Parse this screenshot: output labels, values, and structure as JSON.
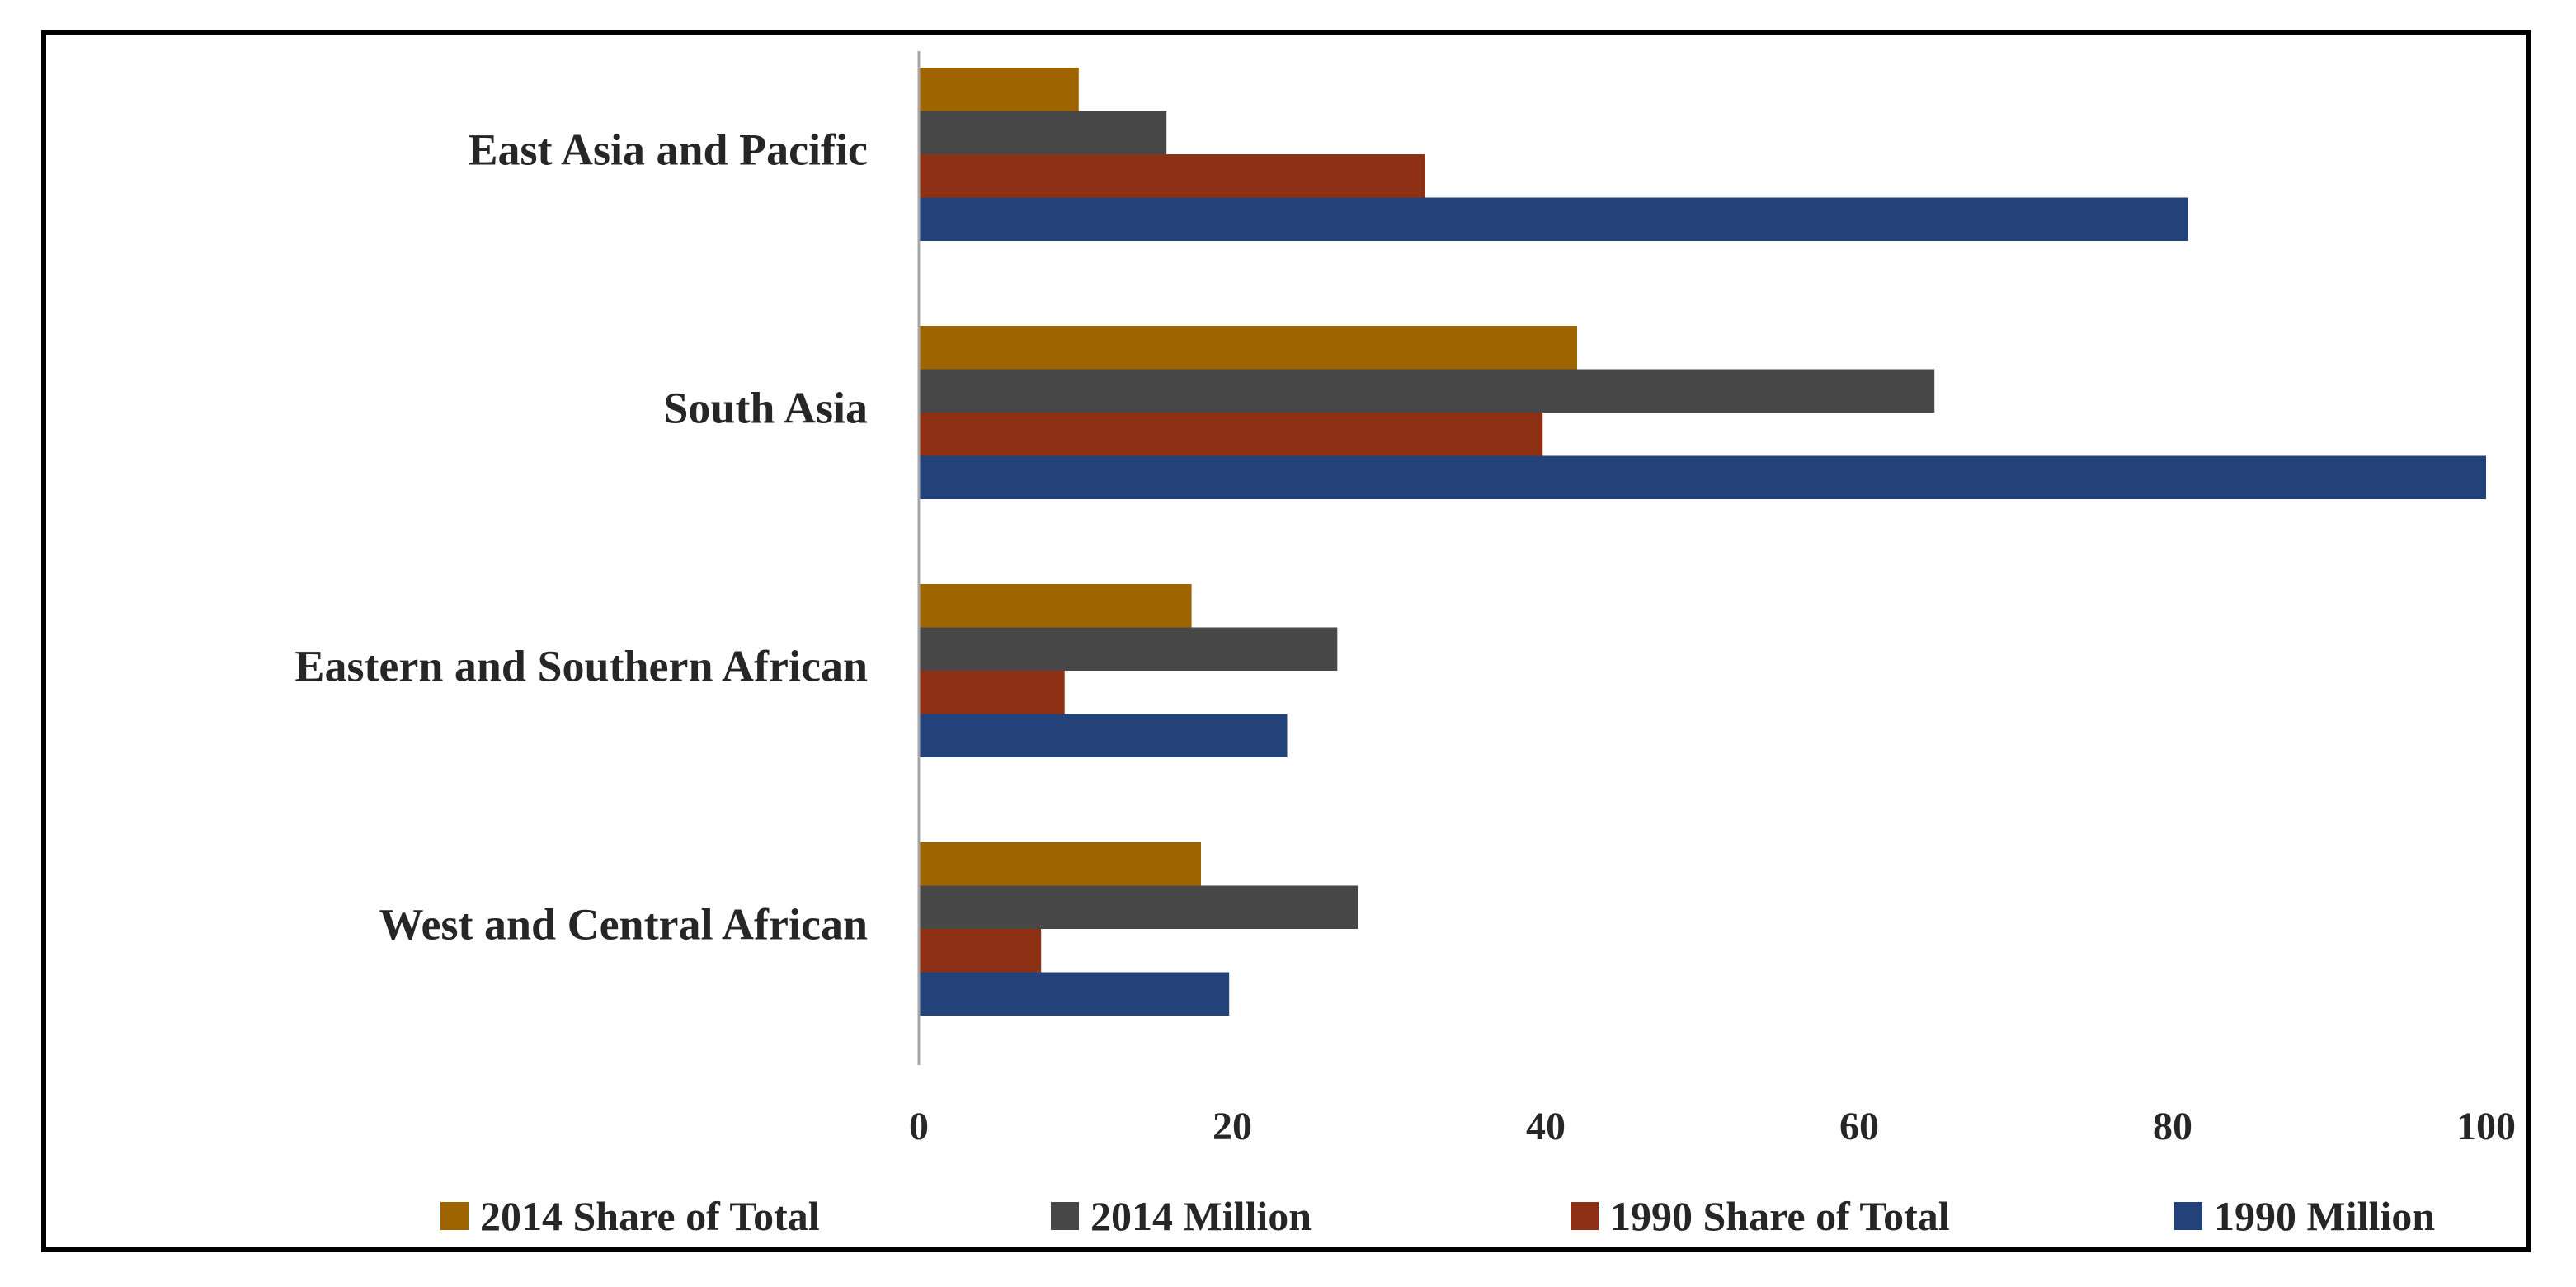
{
  "chart_data": {
    "type": "bar",
    "orientation": "horizontal",
    "title": "",
    "xlabel": "",
    "ylabel": "",
    "xlim": [
      0,
      100
    ],
    "xticks": [
      0,
      20,
      40,
      60,
      80,
      100
    ],
    "xtick_labels": [
      "0",
      "20",
      "40",
      "60",
      "80",
      "100"
    ],
    "grid": false,
    "legend_position": "bottom",
    "categories": [
      "East Asia and Pacific",
      "South Asia",
      "Eastern and Southern African",
      "West and Central African"
    ],
    "series": [
      {
        "name": "2014 Share of Total",
        "color": "#9E6400",
        "values": [
          10.2,
          42.0,
          17.4,
          18.0
        ]
      },
      {
        "name": "2014 Million",
        "color": "#474747",
        "values": [
          15.8,
          64.8,
          26.7,
          28.0
        ]
      },
      {
        "name": "1990 Share of Total",
        "color": "#8E3014",
        "values": [
          32.3,
          39.8,
          9.3,
          7.8
        ]
      },
      {
        "name": "1990 Million",
        "color": "#24427A",
        "values": [
          81.0,
          100.0,
          23.5,
          19.8
        ]
      }
    ]
  }
}
